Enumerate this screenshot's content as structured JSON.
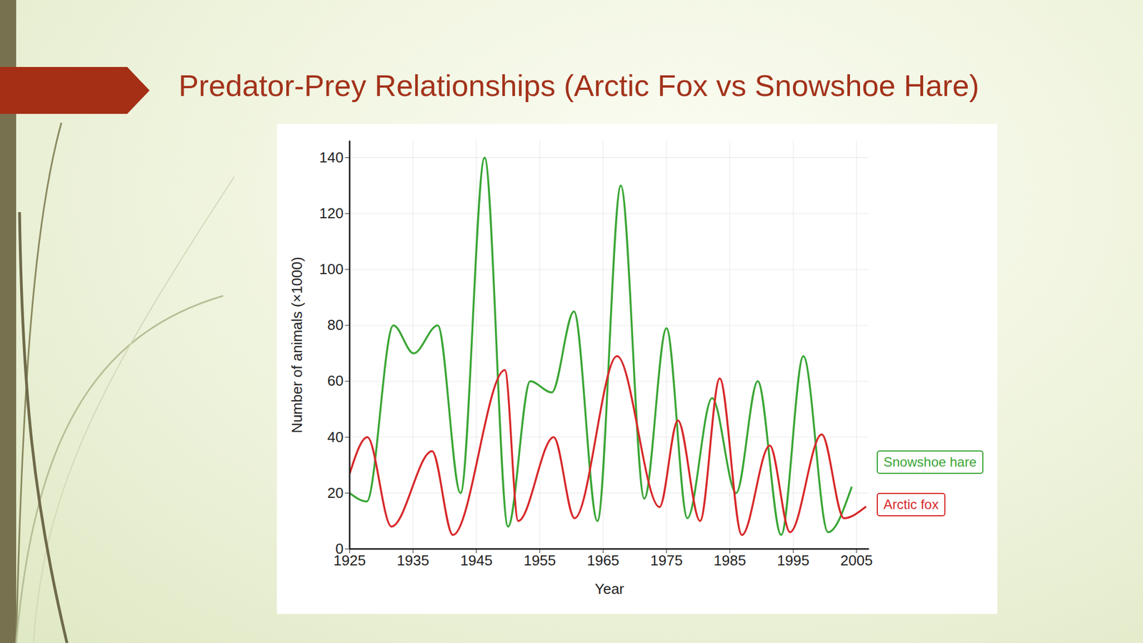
{
  "chart_data": {
    "type": "line",
    "title": "Predator-Prey Relationships (Arctic Fox vs Snowshoe Hare)",
    "x_label": "Year",
    "y_label": "Number of animals (×1000)",
    "xlim": [
      1925,
      2007
    ],
    "xticks": [
      1925,
      1935,
      1945,
      1955,
      1965,
      1975,
      1985,
      1995,
      2005
    ],
    "ylim": [
      0,
      146
    ],
    "yticks": [
      0,
      20,
      40,
      60,
      80,
      100,
      120,
      140
    ],
    "grid": true,
    "legend": "right",
    "series": [
      {
        "name": "Snowshoe hare",
        "color": "#3aa635",
        "x": [
          1925,
          1927.7,
          1931.9,
          1935.1,
          1938.9,
          1942.5,
          1946.3,
          1950,
          1953.5,
          1956.9,
          1960.4,
          1964.1,
          1967.8,
          1971.5,
          1975,
          1978.3,
          1982.2,
          1986,
          1989.4,
          1993.1,
          1996.6,
          2000.5,
          2004.2
        ],
        "values": [
          20,
          17,
          80,
          70,
          80,
          20,
          140,
          8,
          60,
          56,
          85,
          10,
          130,
          18,
          79,
          11,
          54,
          20,
          60,
          5,
          69,
          6,
          22
        ]
      },
      {
        "name": "Arctic fox",
        "color": "#d8282a",
        "x": [
          1925,
          1927.8,
          1931.6,
          1938,
          1941.3,
          1949.5,
          1951.6,
          1957.2,
          1960.5,
          1967.2,
          1973.9,
          1976.8,
          1980.3,
          1983.4,
          1986.9,
          1991.3,
          1994.5,
          1999.5,
          2003,
          2006.4
        ],
        "values": [
          27,
          40,
          8,
          35,
          5,
          64,
          10,
          40,
          11,
          69,
          15,
          46,
          10,
          61,
          5,
          37,
          6,
          41,
          11,
          15
        ]
      }
    ]
  }
}
